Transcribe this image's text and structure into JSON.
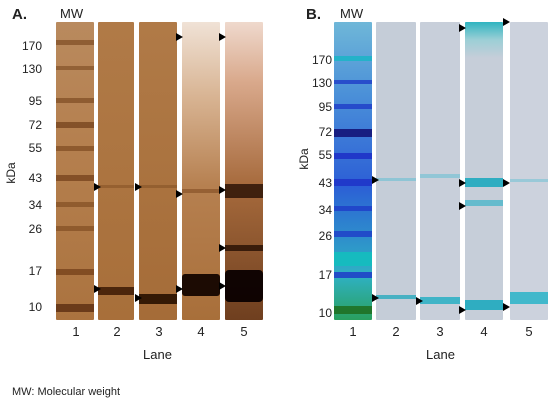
{
  "panel_a": {
    "label": "A.",
    "mw_label": "MW",
    "y_axis_label": "kDa",
    "ticks": [
      "170",
      "130",
      "95",
      "72",
      "55",
      "43",
      "34",
      "26",
      "17",
      "10"
    ],
    "lanes": [
      "1",
      "2",
      "3",
      "4",
      "5"
    ],
    "x_axis_label": "Lane"
  },
  "panel_b": {
    "label": "B.",
    "mw_label": "MW",
    "y_axis_label": "kDa",
    "ticks": [
      "170",
      "130",
      "95",
      "72",
      "55",
      "43",
      "34",
      "26",
      "17",
      "10"
    ],
    "lanes": [
      "1",
      "2",
      "3",
      "4",
      "5"
    ],
    "x_axis_label": "Lane"
  },
  "footnote": "MW: Molecular weight",
  "colors": {
    "silver_gel": "#a9713f",
    "coomassie_gel": "#c9d0dc",
    "ladder_blue": "#1d2fc9",
    "ladder_teal": "#22b8c6",
    "arrow": "#000000"
  }
}
